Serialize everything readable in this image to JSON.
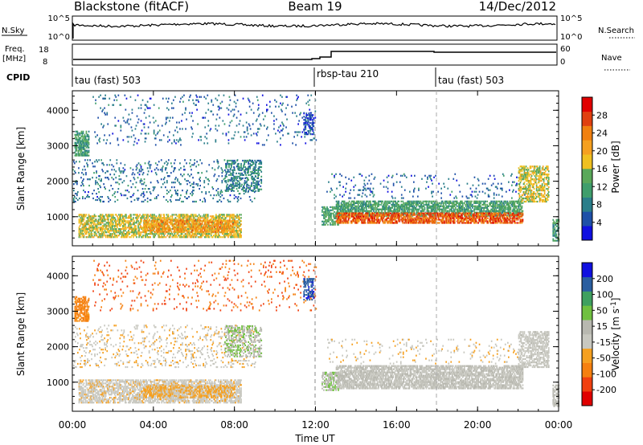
{
  "header": {
    "station": "Blackstone (fitACF)",
    "beam": "Beam 19",
    "date": "14/Dec/2012"
  },
  "top_strip": {
    "left_label": "N.Sky",
    "right_label": "N.Search",
    "left_ticks": [
      "10^5",
      "10^0"
    ],
    "right_ticks": [
      "10^5",
      "10^0"
    ]
  },
  "freq_strip": {
    "left_label_1": "Freq.",
    "left_label_2": "[MHz]",
    "right_label": "Nave",
    "left_ticks": [
      "18",
      "8"
    ],
    "right_ticks": [
      "60",
      "0"
    ]
  },
  "cpid": {
    "label": "CPID",
    "segments": [
      {
        "start_hour": 0,
        "end_hour": 12,
        "name": "tau (fast) 503"
      },
      {
        "start_hour": 12,
        "end_hour": 18,
        "name": "rbsp-tau 210"
      },
      {
        "start_hour": 18,
        "end_hour": 24,
        "name": "tau (fast) 503"
      }
    ]
  },
  "colors": {
    "power": [
      "#1010e0",
      "#1e50a8",
      "#2a7e8a",
      "#3f9e6c",
      "#5aa85a",
      "#f0c020",
      "#f5a020",
      "#f08010",
      "#e04010",
      "#e00000"
    ],
    "velocity": [
      "#e00000",
      "#f04010",
      "#f58010",
      "#f5a020",
      "#c8c8c0",
      "#b8b8b0",
      "#70c040",
      "#3fa060",
      "#2a5ea0",
      "#1010e0"
    ]
  },
  "chart_data": [
    {
      "type": "heatmap",
      "panel": "power",
      "xlabel": "Time UT",
      "ylabel": "Slant Range [km]",
      "xlim": [
        0,
        24
      ],
      "ylim": [
        180,
        4550
      ],
      "x_tick_labels": [
        "00:00",
        "04:00",
        "08:00",
        "12:00",
        "16:00",
        "20:00",
        "00:00"
      ],
      "y_ticks": [
        1000,
        2000,
        3000,
        4000
      ],
      "colorbar_label": "Power [dB]",
      "colorbar_ticks": [
        "4",
        "8",
        "12",
        "16",
        "20",
        "24",
        "28"
      ],
      "colorbar_range": [
        0,
        32
      ],
      "regions": [
        {
          "t": [
            0.3,
            8.3
          ],
          "r": [
            400,
            1050
          ],
          "value": 17,
          "density": 0.55
        },
        {
          "t": [
            3.5,
            8.0
          ],
          "r": [
            550,
            900
          ],
          "value": 22,
          "density": 0.5
        },
        {
          "t": [
            0.1,
            0.8
          ],
          "r": [
            2700,
            3400
          ],
          "value": 11,
          "density": 0.55
        },
        {
          "t": [
            0.0,
            9.0
          ],
          "r": [
            1400,
            2600
          ],
          "value": 7,
          "density": 0.1
        },
        {
          "t": [
            7.5,
            9.3
          ],
          "r": [
            1700,
            2600
          ],
          "value": 9,
          "density": 0.35
        },
        {
          "t": [
            1.0,
            12.0
          ],
          "r": [
            3000,
            4400
          ],
          "value": 6,
          "density": 0.05
        },
        {
          "t": [
            11.4,
            11.9
          ],
          "r": [
            3300,
            3900
          ],
          "value": 5,
          "density": 0.5
        },
        {
          "t": [
            12.3,
            13.1
          ],
          "r": [
            750,
            1250
          ],
          "value": 12,
          "density": 0.5
        },
        {
          "t": [
            13.0,
            22.2
          ],
          "r": [
            1000,
            1450
          ],
          "value": 12,
          "density": 0.6
        },
        {
          "t": [
            13.0,
            22.2
          ],
          "r": [
            800,
            1100
          ],
          "value": 26,
          "density": 0.65
        },
        {
          "t": [
            12.5,
            22.3
          ],
          "r": [
            1500,
            2200
          ],
          "value": 6,
          "density": 0.06
        },
        {
          "t": [
            22.0,
            23.5
          ],
          "r": [
            1400,
            2400
          ],
          "value": 17,
          "density": 0.5
        },
        {
          "t": [
            23.7,
            24.0
          ],
          "r": [
            300,
            900
          ],
          "value": 12,
          "density": 0.6
        }
      ]
    },
    {
      "type": "heatmap",
      "panel": "velocity",
      "xlabel": "Time UT",
      "ylabel": "Slant Range [km]",
      "xlim": [
        0,
        24
      ],
      "ylim": [
        180,
        4550
      ],
      "x_tick_labels": [
        "00:00",
        "04:00",
        "08:00",
        "12:00",
        "16:00",
        "20:00",
        "00:00"
      ],
      "y_ticks": [
        1000,
        2000,
        3000,
        4000
      ],
      "colorbar_label": "Velocity [m s^-1]",
      "colorbar_ticks": [
        "200",
        "100",
        "50",
        "15",
        "-15",
        "-50",
        "-100",
        "-200"
      ],
      "colorbar_range": [
        -250,
        250
      ],
      "regions": [
        {
          "t": [
            0.3,
            8.3
          ],
          "r": [
            400,
            1050
          ],
          "value": -30,
          "density": 0.55
        },
        {
          "t": [
            3.5,
            8.0
          ],
          "r": [
            550,
            900
          ],
          "value": -60,
          "density": 0.5
        },
        {
          "t": [
            0.1,
            0.8
          ],
          "r": [
            2700,
            3400
          ],
          "value": -120,
          "density": 0.55
        },
        {
          "t": [
            0.0,
            9.0
          ],
          "r": [
            1400,
            2600
          ],
          "value": -40,
          "density": 0.1
        },
        {
          "t": [
            7.5,
            9.3
          ],
          "r": [
            1700,
            2600
          ],
          "value": 40,
          "density": 0.35
        },
        {
          "t": [
            1.0,
            12.0
          ],
          "r": [
            3000,
            4400
          ],
          "value": -150,
          "density": 0.05
        },
        {
          "t": [
            11.4,
            11.9
          ],
          "r": [
            3300,
            3900
          ],
          "value": 180,
          "density": 0.5
        },
        {
          "t": [
            12.3,
            13.1
          ],
          "r": [
            750,
            1250
          ],
          "value": 40,
          "density": 0.5
        },
        {
          "t": [
            13.0,
            22.2
          ],
          "r": [
            800,
            1450
          ],
          "value": 0,
          "density": 0.65
        },
        {
          "t": [
            12.5,
            22.3
          ],
          "r": [
            1500,
            2200
          ],
          "value": -40,
          "density": 0.06
        },
        {
          "t": [
            22.0,
            23.5
          ],
          "r": [
            1400,
            2400
          ],
          "value": -20,
          "density": 0.5
        },
        {
          "t": [
            23.7,
            24.0
          ],
          "r": [
            300,
            900
          ],
          "value": 10,
          "density": 0.6
        }
      ]
    }
  ]
}
